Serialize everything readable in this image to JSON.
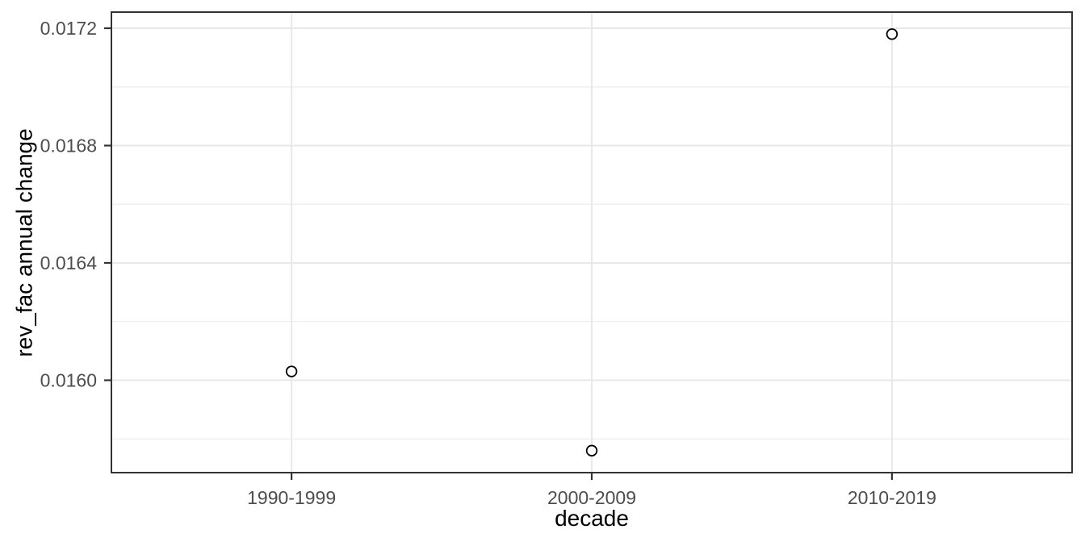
{
  "chart_data": {
    "type": "scatter",
    "title": "",
    "xlabel": "decade",
    "ylabel": "rev_fac annual change",
    "categories": [
      "1990-1999",
      "2000-2009",
      "2010-2019"
    ],
    "values": [
      0.01603,
      0.01576,
      0.01718
    ],
    "y_ticks": [
      0.016,
      0.0164,
      0.0168,
      0.0172
    ],
    "y_tick_labels": [
      "0.0160",
      "0.0164",
      "0.0168",
      "0.0172"
    ],
    "y_minor_ticks": [
      0.0158,
      0.0162,
      0.0166,
      0.017
    ],
    "ylim": [
      0.015685,
      0.017255
    ],
    "grid": "major-and-minor-horizontal, major-vertical-at-categories",
    "legend": false,
    "style": "ggplot2-theme-bw",
    "point_style": "open-circle",
    "colors": {
      "background": "#ffffff",
      "panel_border": "#333333",
      "grid_major": "#e8e8e8",
      "grid_minor": "#efefef",
      "tick_mark": "#333333",
      "tick_label": "#4d4d4d",
      "axis_title": "#000000",
      "point_stroke": "#000000",
      "point_fill": "#ffffff"
    }
  }
}
